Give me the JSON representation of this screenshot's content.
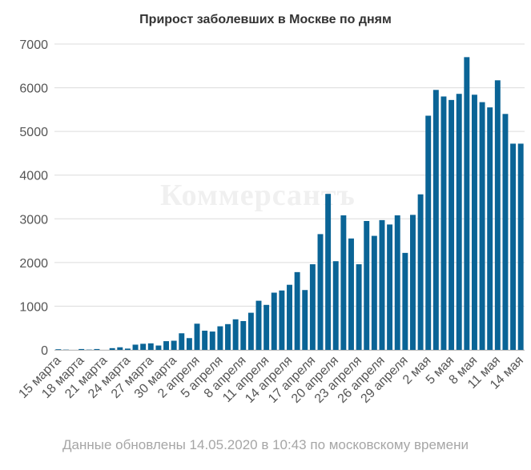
{
  "chart_data": {
    "type": "bar",
    "title": "Прирост заболевших в Москве по дням",
    "watermark": "Коммерсантъ",
    "footer": "Данные обновлены 14.05.2020 в 10:43 по московскому времени",
    "bar_color": "#0a6496",
    "grid": true,
    "ylim": [
      0,
      7000
    ],
    "yticks": [
      "0",
      "1000",
      "2000",
      "3000",
      "4000",
      "5000",
      "6000",
      "7000"
    ],
    "tick_labels": [
      "15 марта",
      "18 марта",
      "21 марта",
      "24 марта",
      "27 марта",
      "30 марта",
      "2 апреля",
      "5 апреля",
      "8 апреля",
      "11 апреля",
      "14 апреля",
      "17 апреля",
      "20 апреля",
      "23 апреля",
      "26 апреля",
      "29 апреля",
      "2 мая",
      "5 мая",
      "8 мая",
      "11 мая",
      "14 мая"
    ],
    "categories": [
      "15 марта",
      "16 марта",
      "17 марта",
      "18 марта",
      "19 марта",
      "20 марта",
      "21 марта",
      "22 марта",
      "23 марта",
      "24 марта",
      "25 марта",
      "26 марта",
      "27 марта",
      "28 марта",
      "29 марта",
      "30 марта",
      "31 марта",
      "1 апреля",
      "2 апреля",
      "3 апреля",
      "4 апреля",
      "5 апреля",
      "6 апреля",
      "7 апреля",
      "8 апреля",
      "9 апреля",
      "10 апреля",
      "11 апреля",
      "12 апреля",
      "13 апреля",
      "14 апреля",
      "15 апреля",
      "16 апреля",
      "17 апреля",
      "18 апреля",
      "19 апреля",
      "20 апреля",
      "21 апреля",
      "22 апреля",
      "23 апреля",
      "24 апреля",
      "25 апреля",
      "26 апреля",
      "27 апреля",
      "28 апреля",
      "29 апреля",
      "30 апреля",
      "1 мая",
      "2 мая",
      "3 мая",
      "4 мая",
      "5 мая",
      "6 мая",
      "7 мая",
      "8 мая",
      "9 мая",
      "10 мая",
      "11 мая",
      "12 мая",
      "13 мая",
      "14 мая"
    ],
    "values": [
      15,
      6,
      0,
      20,
      6,
      20,
      0,
      40,
      60,
      30,
      120,
      140,
      150,
      100,
      200,
      210,
      380,
      270,
      600,
      440,
      420,
      540,
      590,
      700,
      660,
      850,
      1125,
      1030,
      1310,
      1360,
      1490,
      1780,
      1370,
      1960,
      2650,
      3570,
      2030,
      3080,
      2550,
      1960,
      2950,
      2610,
      2970,
      2870,
      3080,
      2220,
      3090,
      3560,
      5360,
      5950,
      5800,
      5720,
      5860,
      6700,
      5840,
      5670,
      5550,
      6170,
      5400,
      4720,
      4720
    ]
  }
}
